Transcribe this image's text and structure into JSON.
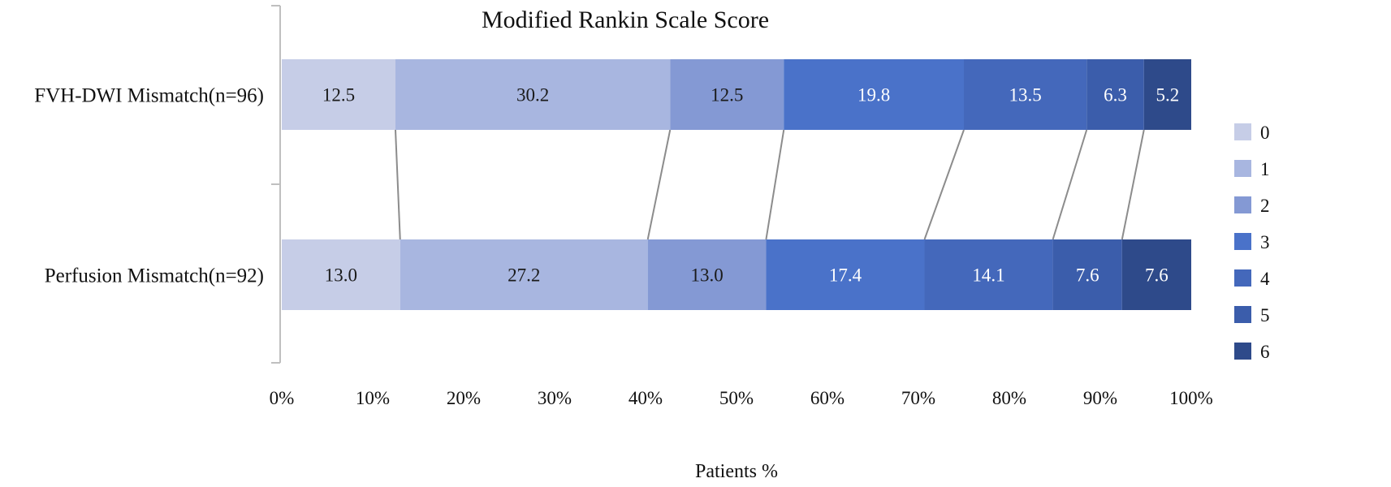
{
  "chart_data": {
    "type": "bar",
    "orientation": "horizontal",
    "stacked": true,
    "title": "Modified Rankin Scale Score",
    "xlabel": "Patients %",
    "ylabel": "",
    "xlim": [
      0,
      100
    ],
    "x_ticks": [
      "0%",
      "10%",
      "20%",
      "30%",
      "40%",
      "50%",
      "60%",
      "70%",
      "80%",
      "90%",
      "100%"
    ],
    "categories": [
      "FVH-DWI Mismatch(n=96)",
      "Perfusion Mismatch(n=92)"
    ],
    "series": [
      {
        "name": "0",
        "color": "#c6cde7",
        "values": [
          12.5,
          13.0
        ],
        "labels": [
          "12.5",
          "13.0"
        ]
      },
      {
        "name": "1",
        "color": "#a8b6e0",
        "values": [
          30.2,
          27.2
        ],
        "labels": [
          "30.2",
          "27.2"
        ]
      },
      {
        "name": "2",
        "color": "#8499d4",
        "values": [
          12.5,
          13.0
        ],
        "labels": [
          "12.5",
          "13.0"
        ]
      },
      {
        "name": "3",
        "color": "#4a72c9",
        "values": [
          19.8,
          17.4
        ],
        "labels": [
          "19.8",
          "17.4"
        ]
      },
      {
        "name": "4",
        "color": "#4468bb",
        "values": [
          13.5,
          14.1
        ],
        "labels": [
          "13.5",
          "14.1"
        ]
      },
      {
        "name": "5",
        "color": "#3b5dab",
        "values": [
          6.3,
          7.6
        ],
        "labels": [
          "6.3",
          "7.6"
        ]
      },
      {
        "name": "6",
        "color": "#2e4a8a",
        "values": [
          5.2,
          7.6
        ],
        "labels": [
          "5.2",
          "7.6"
        ]
      }
    ],
    "series_lines": true,
    "legend": "right"
  }
}
